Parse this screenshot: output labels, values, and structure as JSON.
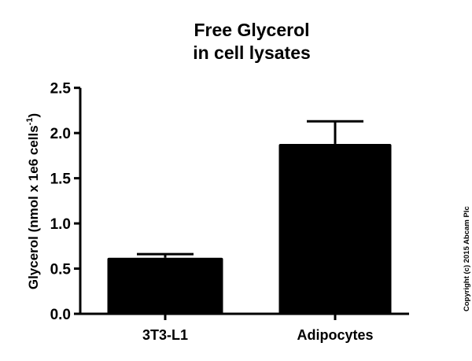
{
  "chart_data": {
    "type": "bar",
    "title_lines": [
      "Free Glycerol",
      "in cell lysates"
    ],
    "ylabel": "Glycerol (nmol x 1e6 cells",
    "ylabel_superscript": "-1",
    "ylabel_close": ")",
    "xlabel": "",
    "categories": [
      "3T3-L1",
      "Adipocytes"
    ],
    "values": [
      0.62,
      1.88
    ],
    "error_upper": [
      0.04,
      0.25
    ],
    "ylim": [
      0,
      2.5
    ],
    "yticks": [
      "0.0",
      "0.5",
      "1.0",
      "1.5",
      "2.0",
      "2.5"
    ],
    "bar_color": "#000000",
    "grid": false
  },
  "copyright": "Copyright (c) 2015 Abcam Plc"
}
